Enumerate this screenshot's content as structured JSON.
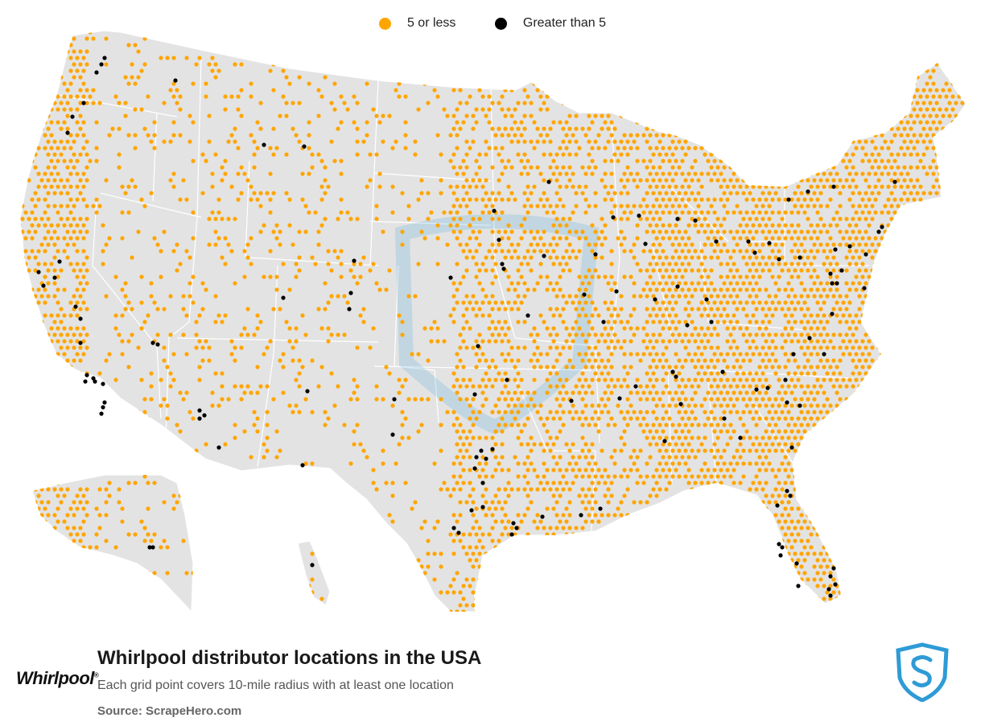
{
  "legend": {
    "items": [
      {
        "label": "5 or less",
        "color": "#FFA500"
      },
      {
        "label": "Greater than 5",
        "color": "#000000"
      }
    ]
  },
  "title": "Whirlpool distributor locations in the USA",
  "subtitle": "Each grid point covers 10-mile radius with at least one location",
  "source": "Source: ScrapeHero.com",
  "brand_logo_text": "Whirlpool",
  "colors": {
    "land": "#E3E3E3",
    "borders": "#FFFFFF",
    "low": "#FFA500",
    "high": "#000000",
    "accent": "#2E9BD6"
  },
  "icons": [
    "scrapehero-shield-icon",
    "whirlpool-logo"
  ]
}
